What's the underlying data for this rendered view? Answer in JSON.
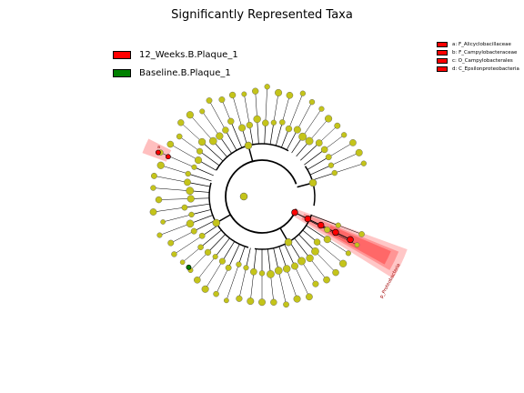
{
  "title": "Significantly Represented Taxa",
  "colors": {
    "group_12w": "#ff0000",
    "group_baseline": "#008000",
    "neutral_node": "#c4c41a",
    "highlight": "#ff0000"
  },
  "legend": [
    {
      "label": "12_Weeks.B.Plaque_1",
      "color": "#ff0000"
    },
    {
      "label": "Baseline.B.Plaque_1",
      "color": "#008000"
    }
  ],
  "clade_legend": [
    {
      "label": "a: F_Alicyclobacillaceae"
    },
    {
      "label": "b: F_Campylobacteraceae"
    },
    {
      "label": "c: O_Campylobacterales"
    },
    {
      "label": "d: C_Epsilonproteobacteria"
    }
  ],
  "highlight_labels": {
    "clade_a": "a",
    "phylum": "p_Proteobacteria"
  }
}
